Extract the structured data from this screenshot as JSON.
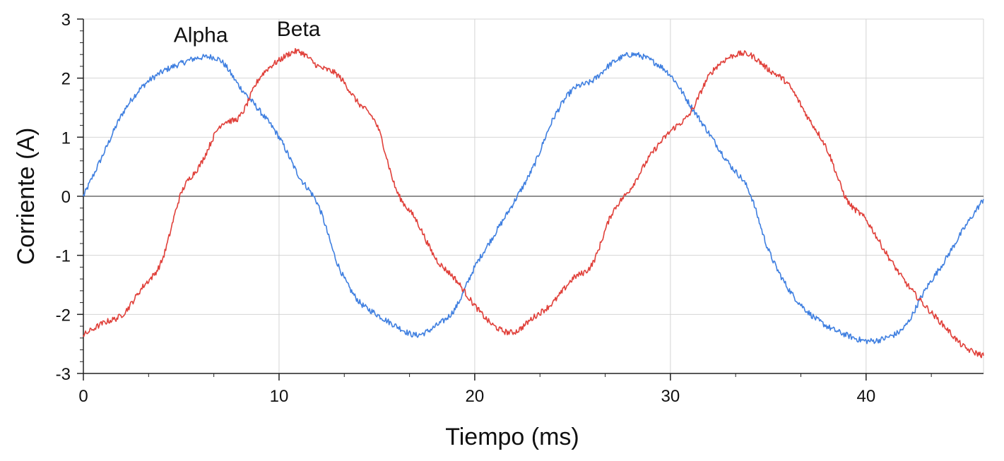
{
  "chart_data": {
    "type": "line",
    "title": "",
    "xlabel": "Tiempo (ms)",
    "ylabel": "Corriente (A)",
    "xlim": [
      0,
      46
    ],
    "ylim": [
      -3,
      3
    ],
    "x_ticks": [
      0,
      10,
      20,
      30,
      40
    ],
    "y_ticks": [
      -3,
      -2,
      -1,
      0,
      1,
      2,
      3
    ],
    "x_tick_labels": [
      "0",
      "10",
      "20",
      "30",
      "40"
    ],
    "y_tick_labels": [
      "-3",
      "-2",
      "-1",
      "0",
      "1",
      "2",
      "3"
    ],
    "grid": true,
    "legend": "inline labels near top-left peaks",
    "series": [
      {
        "name": "Alpha",
        "color": "#3f7fe0",
        "x": [
          0,
          1,
          2,
          3,
          4,
          5,
          6,
          7,
          8,
          9,
          10,
          11,
          12,
          13,
          14,
          15,
          16,
          17,
          18,
          19,
          20,
          21,
          22,
          23,
          24,
          25,
          26,
          27,
          28,
          29,
          30,
          31,
          32,
          33,
          34,
          35,
          36,
          37,
          38,
          39,
          40,
          41,
          42,
          43,
          44,
          45,
          46
        ],
        "y": [
          0.0,
          0.7,
          1.4,
          1.85,
          2.1,
          2.25,
          2.35,
          2.3,
          1.85,
          1.45,
          1.0,
          0.35,
          -0.15,
          -1.15,
          -1.75,
          -2.0,
          -2.2,
          -2.35,
          -2.2,
          -1.9,
          -1.2,
          -0.65,
          -0.1,
          0.5,
          1.3,
          1.8,
          1.95,
          2.25,
          2.4,
          2.3,
          2.05,
          1.55,
          1.05,
          0.55,
          0.1,
          -0.9,
          -1.55,
          -1.95,
          -2.2,
          -2.35,
          -2.45,
          -2.4,
          -2.2,
          -1.6,
          -1.1,
          -0.55,
          -0.05
        ]
      },
      {
        "name": "Beta",
        "color": "#e0403a",
        "x": [
          0,
          1,
          2,
          3,
          4,
          5,
          6,
          7,
          8,
          9,
          10,
          11,
          12,
          13,
          14,
          15,
          16,
          17,
          18,
          19,
          20,
          21,
          22,
          23,
          24,
          25,
          26,
          27,
          28,
          29,
          30,
          31,
          32,
          33,
          34,
          35,
          36,
          37,
          38,
          39,
          40,
          41,
          42,
          43,
          44,
          45,
          46
        ],
        "y": [
          -2.35,
          -2.15,
          -2.0,
          -1.55,
          -1.1,
          0.05,
          0.55,
          1.2,
          1.35,
          2.0,
          2.3,
          2.45,
          2.2,
          2.05,
          1.6,
          1.2,
          0.1,
          -0.4,
          -1.05,
          -1.4,
          -1.85,
          -2.2,
          -2.3,
          -2.05,
          -1.8,
          -1.4,
          -1.15,
          -0.3,
          0.15,
          0.7,
          1.1,
          1.4,
          2.05,
          2.35,
          2.4,
          2.15,
          1.9,
          1.35,
          0.8,
          -0.05,
          -0.4,
          -0.95,
          -1.45,
          -1.85,
          -2.2,
          -2.55,
          -2.7
        ]
      }
    ]
  }
}
